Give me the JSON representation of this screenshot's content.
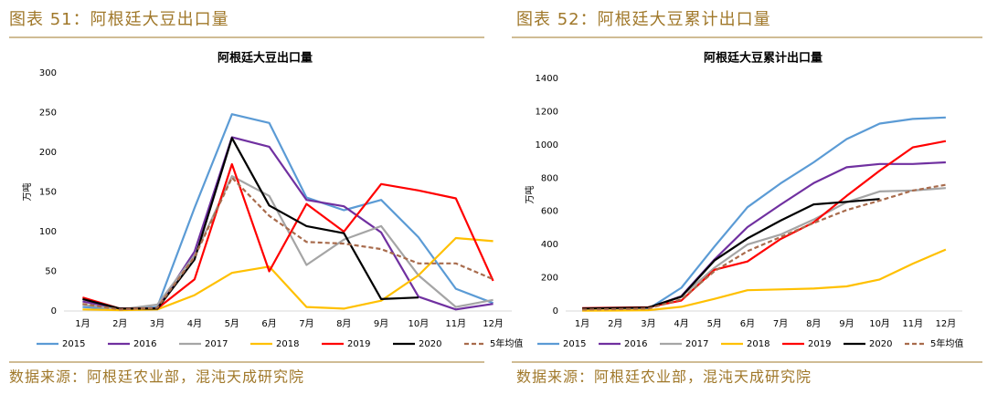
{
  "chart_data": [
    {
      "type": "line",
      "caption": "图表 51：阿根廷大豆出口量",
      "title": "阿根廷大豆出口量",
      "y_label": "万吨",
      "source": "数据来源：阿根廷农业部，混沌天成研究院",
      "categories": [
        "1月",
        "2月",
        "3月",
        "4月",
        "5月",
        "6月",
        "7月",
        "8月",
        "9月",
        "10月",
        "11月",
        "12月"
      ],
      "ylim": [
        0,
        300
      ],
      "yticks": [
        0,
        50,
        100,
        150,
        200,
        250,
        300
      ],
      "legend": "bottom",
      "series": [
        {
          "name": "2015",
          "color": "#5b9bd5",
          "values": [
            5,
            2,
            5,
            130,
            248,
            237,
            143,
            127,
            140,
            93,
            28,
            10
          ]
        },
        {
          "name": "2016",
          "color": "#7030a0",
          "values": [
            12,
            3,
            3,
            75,
            219,
            207,
            140,
            132,
            99,
            18,
            2,
            9
          ]
        },
        {
          "name": "2017",
          "color": "#a5a5a5",
          "values": [
            8,
            2,
            8,
            70,
            170,
            145,
            58,
            90,
            107,
            45,
            5,
            14
          ]
        },
        {
          "name": "2018",
          "color": "#ffc000",
          "values": [
            2,
            1,
            2,
            20,
            48,
            56,
            5,
            3,
            13,
            45,
            92,
            88
          ]
        },
        {
          "name": "2019",
          "color": "#ff0000",
          "values": [
            17,
            3,
            3,
            40,
            185,
            50,
            135,
            100,
            160,
            152,
            142,
            38
          ]
        },
        {
          "name": "2020",
          "color": "#000000",
          "values": [
            15,
            3,
            3,
            65,
            218,
            133,
            107,
            98,
            15,
            17,
            null,
            null
          ]
        },
        {
          "name": "5年均值",
          "color": "#a86b4c",
          "dashed": true,
          "values": [
            9,
            2,
            4,
            68,
            168,
            120,
            87,
            85,
            78,
            60,
            60,
            40
          ]
        }
      ]
    },
    {
      "type": "line",
      "caption": "图表 52：阿根廷大豆累计出口量",
      "title": "阿根廷大豆累计出口量",
      "y_label": "万吨",
      "source": "数据来源：阿根廷农业部，混沌天成研究院",
      "categories": [
        "1月",
        "2月",
        "3月",
        "4月",
        "5月",
        "6月",
        "7月",
        "8月",
        "9月",
        "10月",
        "11月",
        "12月"
      ],
      "ylim": [
        0,
        1400
      ],
      "yticks": [
        0,
        200,
        400,
        600,
        800,
        1000,
        1200,
        1400
      ],
      "legend": "bottom",
      "series": [
        {
          "name": "2015",
          "color": "#5b9bd5",
          "values": [
            5,
            7,
            12,
            140,
            388,
            625,
            768,
            895,
            1035,
            1128,
            1156,
            1165
          ]
        },
        {
          "name": "2016",
          "color": "#7030a0",
          "values": [
            12,
            15,
            18,
            90,
            310,
            505,
            640,
            770,
            865,
            885,
            885,
            895
          ]
        },
        {
          "name": "2017",
          "color": "#a5a5a5",
          "values": [
            8,
            10,
            18,
            88,
            260,
            400,
            460,
            550,
            655,
            720,
            725,
            740
          ]
        },
        {
          "name": "2018",
          "color": "#ffc000",
          "values": [
            2,
            3,
            5,
            25,
            73,
            125,
            130,
            135,
            148,
            190,
            285,
            370
          ]
        },
        {
          "name": "2019",
          "color": "#ff0000",
          "values": [
            17,
            20,
            23,
            63,
            248,
            298,
            433,
            533,
            693,
            845,
            985,
            1023
          ]
        },
        {
          "name": "2020",
          "color": "#000000",
          "values": [
            15,
            18,
            21,
            86,
            304,
            437,
            544,
            642,
            657,
            674,
            null,
            null
          ]
        },
        {
          "name": "5年均值",
          "color": "#a86b4c",
          "dashed": true,
          "values": [
            9,
            11,
            15,
            70,
            240,
            360,
            445,
            530,
            608,
            665,
            725,
            760
          ]
        }
      ]
    }
  ]
}
